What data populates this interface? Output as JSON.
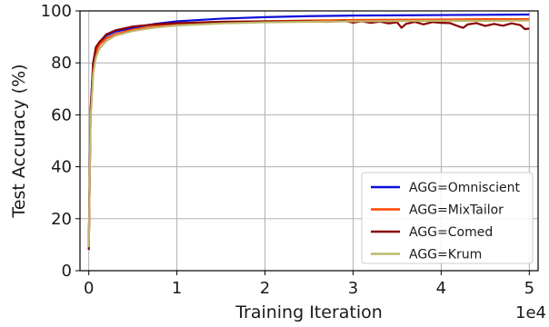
{
  "chart_data": {
    "type": "line",
    "title": "",
    "xlabel": "Training Iteration",
    "ylabel": "Test Accuracy (%)",
    "x_multiplier_label": "1e4",
    "xlim": [
      -0.1,
      5.1
    ],
    "ylim": [
      0,
      100
    ],
    "x_ticks": [
      0,
      1,
      2,
      3,
      4,
      5
    ],
    "x_tick_labels": [
      "0",
      "1",
      "2",
      "3",
      "4",
      "5"
    ],
    "y_ticks": [
      0,
      20,
      40,
      60,
      80,
      100
    ],
    "y_tick_labels": [
      "0",
      "20",
      "40",
      "60",
      "80",
      "100"
    ],
    "grid": true,
    "legend_position": "lower-right",
    "series": [
      {
        "name": "AGG=Omniscient",
        "color": "#0d0dd9",
        "x": [
          0,
          0.02,
          0.05,
          0.08,
          0.12,
          0.2,
          0.3,
          0.5,
          0.75,
          1.0,
          1.5,
          2.0,
          2.5,
          3.0,
          3.5,
          4.0,
          4.5,
          5.0
        ],
        "y": [
          9,
          62,
          80,
          85,
          88,
          90.5,
          92,
          93.5,
          95,
          96,
          97,
          97.6,
          98,
          98.2,
          98.3,
          98.4,
          98.5,
          98.6
        ]
      },
      {
        "name": "AGG=MixTailor",
        "color": "#ff4500",
        "x": [
          0,
          0.02,
          0.05,
          0.08,
          0.12,
          0.2,
          0.3,
          0.5,
          0.75,
          1.0,
          1.5,
          2.0,
          2.5,
          3.0,
          3.5,
          4.0,
          4.5,
          5.0
        ],
        "y": [
          9,
          60,
          78,
          84,
          87,
          89.5,
          91,
          92.8,
          94,
          94.8,
          95.6,
          96,
          96.3,
          96.5,
          96.6,
          96.7,
          96.8,
          96.8
        ]
      },
      {
        "name": "AGG=Comed",
        "color": "#8b0000",
        "x": [
          0,
          0.02,
          0.05,
          0.08,
          0.12,
          0.2,
          0.3,
          0.5,
          0.75,
          1.0,
          1.5,
          2.0,
          2.5,
          2.7,
          2.9,
          3.0,
          3.1,
          3.2,
          3.3,
          3.4,
          3.5,
          3.55,
          3.6,
          3.7,
          3.8,
          3.9,
          4.0,
          4.1,
          4.2,
          4.25,
          4.3,
          4.4,
          4.5,
          4.6,
          4.7,
          4.8,
          4.9,
          4.95,
          5.0
        ],
        "y": [
          8,
          61,
          80,
          86,
          88,
          91,
          92.5,
          94,
          94.8,
          95.3,
          95.8,
          96,
          96,
          95.8,
          96.2,
          95.5,
          96,
          95.4,
          95.9,
          95.2,
          95.6,
          93.5,
          95,
          95.8,
          94.8,
          95.7,
          95.4,
          95.3,
          94,
          93.5,
          94.8,
          95.3,
          94.2,
          95,
          94.3,
          95.2,
          94.5,
          93,
          93.2
        ]
      },
      {
        "name": "AGG=Krum",
        "color": "#bdb76b",
        "x": [
          0,
          0.02,
          0.05,
          0.08,
          0.12,
          0.2,
          0.3,
          0.5,
          0.75,
          1.0,
          1.5,
          2.0,
          2.5,
          3.0,
          3.5,
          4.0,
          4.5,
          5.0
        ],
        "y": [
          9,
          58,
          76,
          82,
          85.5,
          88.5,
          90.5,
          92.3,
          93.6,
          94.4,
          95.2,
          95.6,
          95.8,
          96,
          96.1,
          96.2,
          96.2,
          96.3
        ]
      }
    ]
  }
}
